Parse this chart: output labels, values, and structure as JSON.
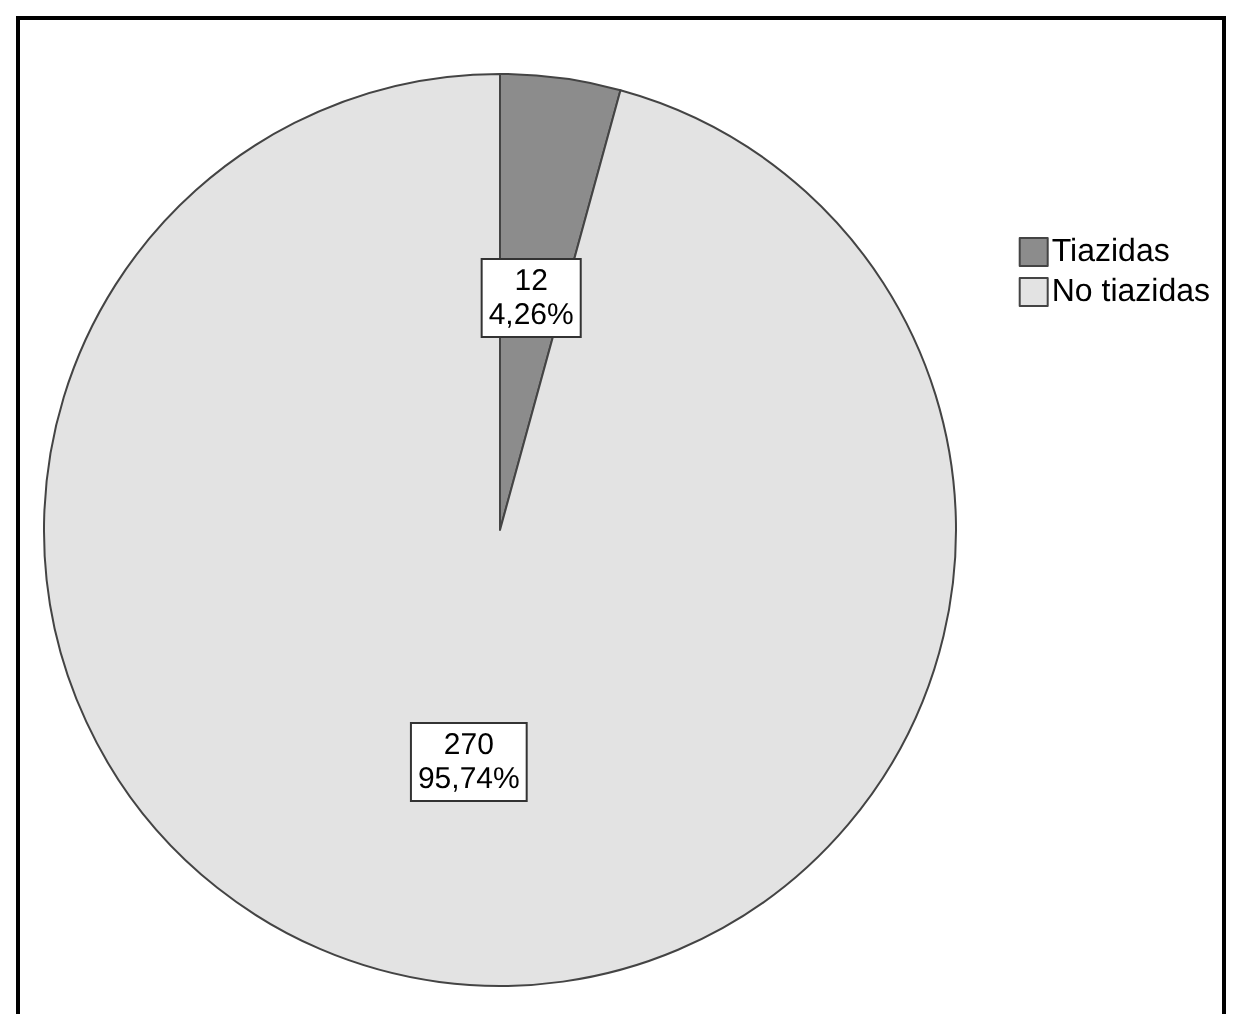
{
  "chart_data": {
    "type": "pie",
    "categories": [
      "Tiazidas",
      "No tiazidas"
    ],
    "values": [
      12,
      270
    ],
    "colors": [
      "#8c8c8c",
      "#e3e3e3"
    ],
    "value_labels": [
      "12\n4,26%",
      "270\n95,74%"
    ],
    "legend": "right"
  }
}
